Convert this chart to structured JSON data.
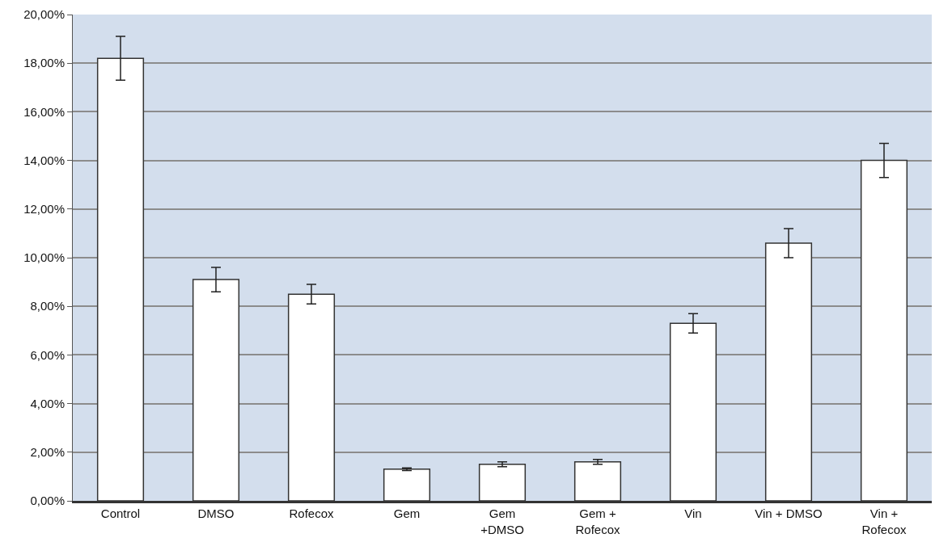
{
  "chart_data": {
    "type": "bar",
    "categories": [
      "Control",
      "DMSO",
      "Rofecox",
      "Gem",
      "Gem\n+DMSO",
      "Gem +\nRofecox",
      "Vin",
      "Vin + DMSO",
      "Vin +\nRofecox"
    ],
    "values": [
      18.2,
      9.1,
      8.5,
      1.3,
      1.5,
      1.6,
      7.3,
      10.6,
      14.0
    ],
    "errors": [
      0.9,
      0.5,
      0.4,
      0.05,
      0.1,
      0.1,
      0.4,
      0.6,
      0.7
    ],
    "color": "#ffffff",
    "ylim": [
      0,
      20
    ],
    "yticks": [
      {
        "value": 0,
        "label": "0,00%"
      },
      {
        "value": 2,
        "label": "2,00%"
      },
      {
        "value": 4,
        "label": "4,00%"
      },
      {
        "value": 6,
        "label": "6,00%"
      },
      {
        "value": 8,
        "label": "8,00%"
      },
      {
        "value": 10,
        "label": "10,00%"
      },
      {
        "value": 12,
        "label": "12,00%"
      },
      {
        "value": 14,
        "label": "14,00%"
      },
      {
        "value": 16,
        "label": "16,00%"
      },
      {
        "value": 18,
        "label": "18,00%"
      },
      {
        "value": 20,
        "label": "20,00%"
      }
    ],
    "grid": "y"
  }
}
